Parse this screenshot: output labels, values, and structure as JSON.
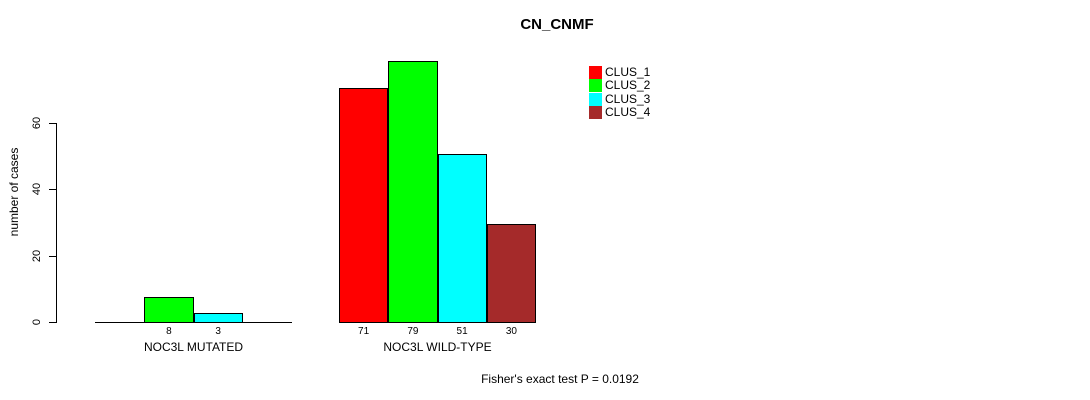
{
  "chart_data": {
    "type": "bar",
    "title": "CN_CNMF",
    "ylabel": "number of cases",
    "xlabel": "",
    "yticks": [
      0,
      20,
      40,
      60
    ],
    "ylim": [
      0,
      79
    ],
    "grid": false,
    "legend_position": "top-right",
    "categories": [
      "NOC3L MUTATED",
      "NOC3L WILD-TYPE"
    ],
    "series": [
      {
        "name": "CLUS_1",
        "color": "#FF0000",
        "values": [
          0,
          71
        ]
      },
      {
        "name": "CLUS_2",
        "color": "#00FF00",
        "values": [
          8,
          79
        ]
      },
      {
        "name": "CLUS_3",
        "color": "#00FFFF",
        "values": [
          3,
          51
        ]
      },
      {
        "name": "CLUS_4",
        "color": "#A52A2A",
        "values": [
          0,
          30
        ]
      }
    ],
    "bar_labels": [
      [
        "",
        "8",
        "3",
        ""
      ],
      [
        "71",
        "79",
        "51",
        "30"
      ]
    ],
    "footer": "Fisher's exact test P = 0.0192"
  }
}
